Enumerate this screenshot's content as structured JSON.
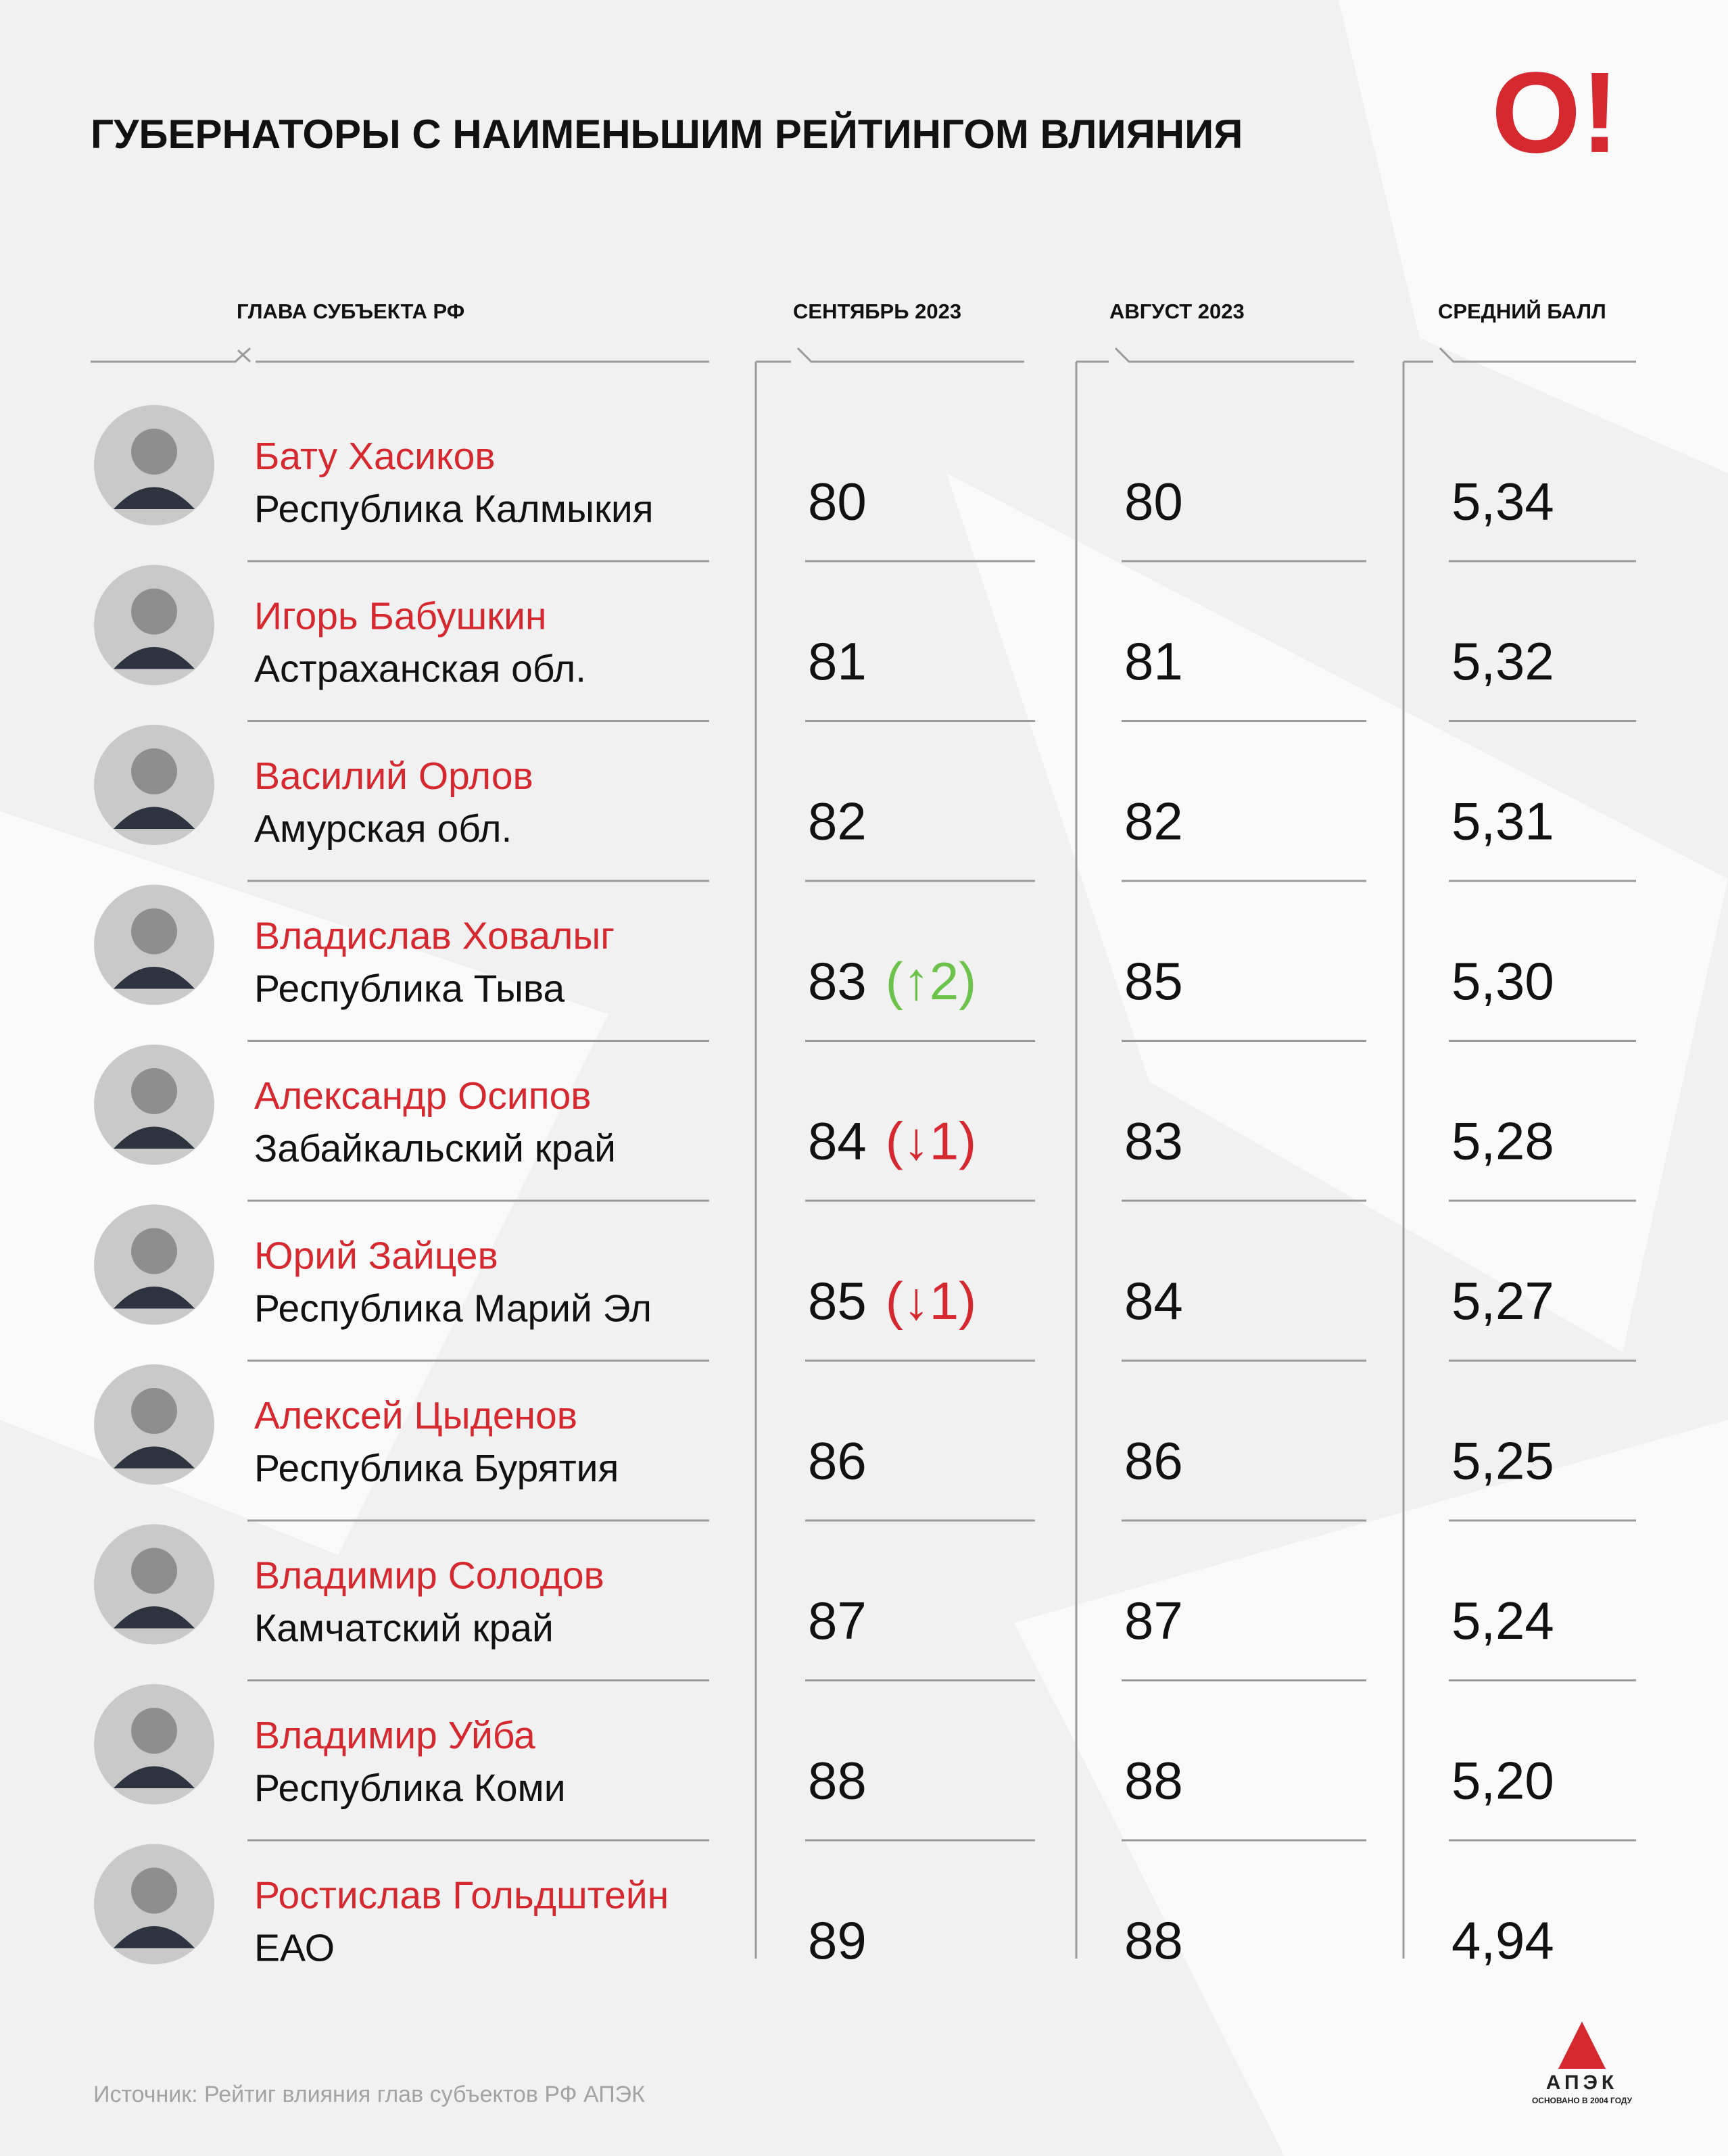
{
  "header": {
    "title": "ГУБЕРНАТОРЫ С НАИМЕНЬШИМ  РЕЙТИНГОМ ВЛИЯНИЯ",
    "logo": "O!"
  },
  "table": {
    "columns": [
      "ГЛАВА СУБЪЕКТА РФ",
      "СЕНТЯБРЬ 2023",
      "АВГУСТ 2023",
      "СРЕДНИЙ БАЛЛ"
    ],
    "rows": [
      {
        "name": "Бату Хасиков",
        "region": "Республика Калмыкия",
        "september": 80,
        "august": 80,
        "average": "5,34"
      },
      {
        "name": "Игорь Бабушкин",
        "region": "Астраханская обл.",
        "september": 81,
        "august": 81,
        "average": "5,32"
      },
      {
        "name": "Василий Орлов",
        "region": "Амурская обл.",
        "september": 82,
        "august": 82,
        "average": "5,31"
      },
      {
        "name": "Владислав Ховалыг",
        "region": "Республика Тыва",
        "september": 83,
        "change": "(↑2)",
        "change_color": "#6cc24a",
        "august": 85,
        "average": "5,30"
      },
      {
        "name": "Александр Осипов",
        "region": "Забайкальский край",
        "september": 84,
        "change": "(↓1)",
        "change_color": "#d6282f",
        "august": 83,
        "average": "5,28"
      },
      {
        "name": "Юрий Зайцев",
        "region": "Республика Марий Эл",
        "september": 85,
        "change": "(↓1)",
        "change_color": "#d6282f",
        "august": 84,
        "average": "5,27"
      },
      {
        "name": "Алексей Цыденов",
        "region": "Республика Бурятия",
        "september": 86,
        "august": 86,
        "average": "5,25"
      },
      {
        "name": "Владимир Солодов",
        "region": "Камчатский край",
        "september": 87,
        "august": 87,
        "average": "5,24"
      },
      {
        "name": "Владимир Уйба",
        "region": "Республика Коми",
        "september": 88,
        "august": 88,
        "average": "5,20"
      },
      {
        "name": "Ростислав Гольдштейн",
        "region": "ЕАО",
        "september": 89,
        "august": 88,
        "average": "4,94"
      }
    ]
  },
  "footer": {
    "source": "Источник: Рейтиг влияния глав субъектов РФ АПЭК",
    "brand": "АПЭК",
    "brand_note": "ОСНОВАНО В 2004 ГОДУ"
  }
}
